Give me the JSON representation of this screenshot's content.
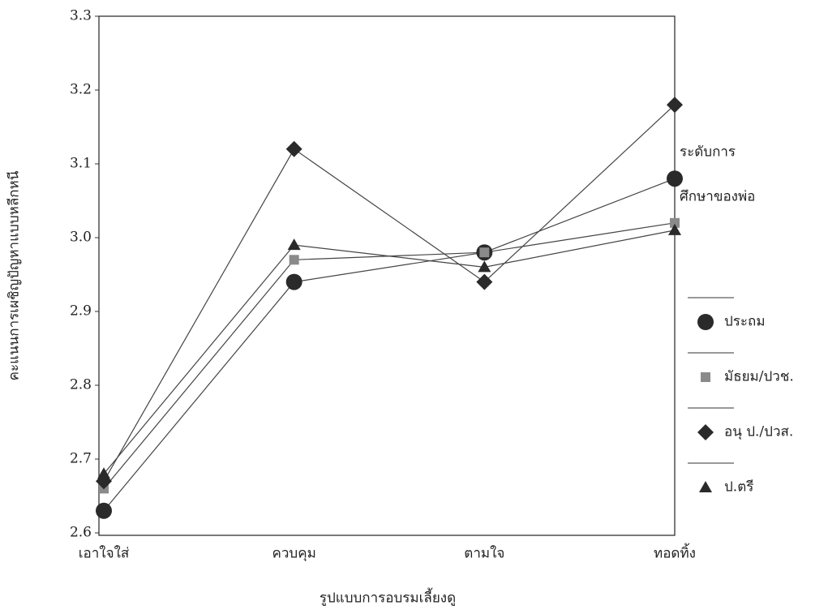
{
  "chart_data": {
    "type": "line",
    "x_label": "รูปแบบการอบรมเลี้ยงดู",
    "y_label": "คะแนนการเผชิญปัญหาแบบหลีกหนี",
    "legend_title": [
      "ระดับการ",
      "ศึกษาของพ่อ"
    ],
    "categories": [
      "เอาใจใส่",
      "ควบคุม",
      "ตามใจ",
      "ทอดทิ้ง"
    ],
    "ylim": [
      2.6,
      3.3
    ],
    "yticks": [
      2.6,
      2.7,
      2.8,
      2.9,
      {
        "value": 3,
        "label": "3.0"
      },
      3.1,
      3.2,
      3.3
    ],
    "legend": "right",
    "series": [
      {
        "name": "ประถม",
        "marker": "circle",
        "color": "#2a2a2a",
        "values": [
          2.63,
          2.94,
          2.98,
          3.08
        ]
      },
      {
        "name": "มัธยม/ปวช.",
        "marker": "square",
        "color": "#8a8a8a",
        "values": [
          2.66,
          2.97,
          2.98,
          3.02
        ]
      },
      {
        "name": "อนุ ป./ปวส.",
        "marker": "diamond",
        "color": "#2a2a2a",
        "values": [
          2.67,
          3.12,
          2.94,
          3.18
        ]
      },
      {
        "name": "ป.ตรี",
        "marker": "triangle",
        "color": "#2a2a2a",
        "values": [
          2.68,
          2.99,
          2.96,
          3.01
        ]
      }
    ]
  }
}
